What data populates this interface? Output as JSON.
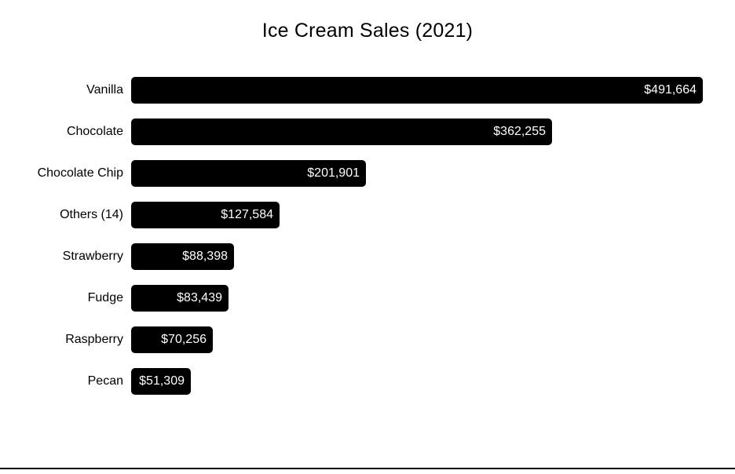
{
  "chart_data": {
    "type": "bar",
    "orientation": "horizontal",
    "title": "Ice Cream Sales (2021)",
    "categories": [
      "Vanilla",
      "Chocolate",
      "Chocolate Chip",
      "Others (14)",
      "Strawberry",
      "Fudge",
      "Raspberry",
      "Pecan"
    ],
    "values": [
      491664,
      362255,
      201901,
      127584,
      88398,
      83439,
      70256,
      51309
    ],
    "value_labels": [
      "$491,664",
      "$362,255",
      "$201,901",
      "$127,584",
      "$88,398",
      "$83,439",
      "$70,256",
      "$51,309"
    ],
    "xlim": [
      0,
      500000
    ],
    "grid": false,
    "legend": false,
    "colors": {
      "bar": "#000000",
      "value_text": "#ffffff",
      "category_text": "#000000",
      "background": "#ffffff",
      "bottom_rule": "#000000"
    }
  }
}
